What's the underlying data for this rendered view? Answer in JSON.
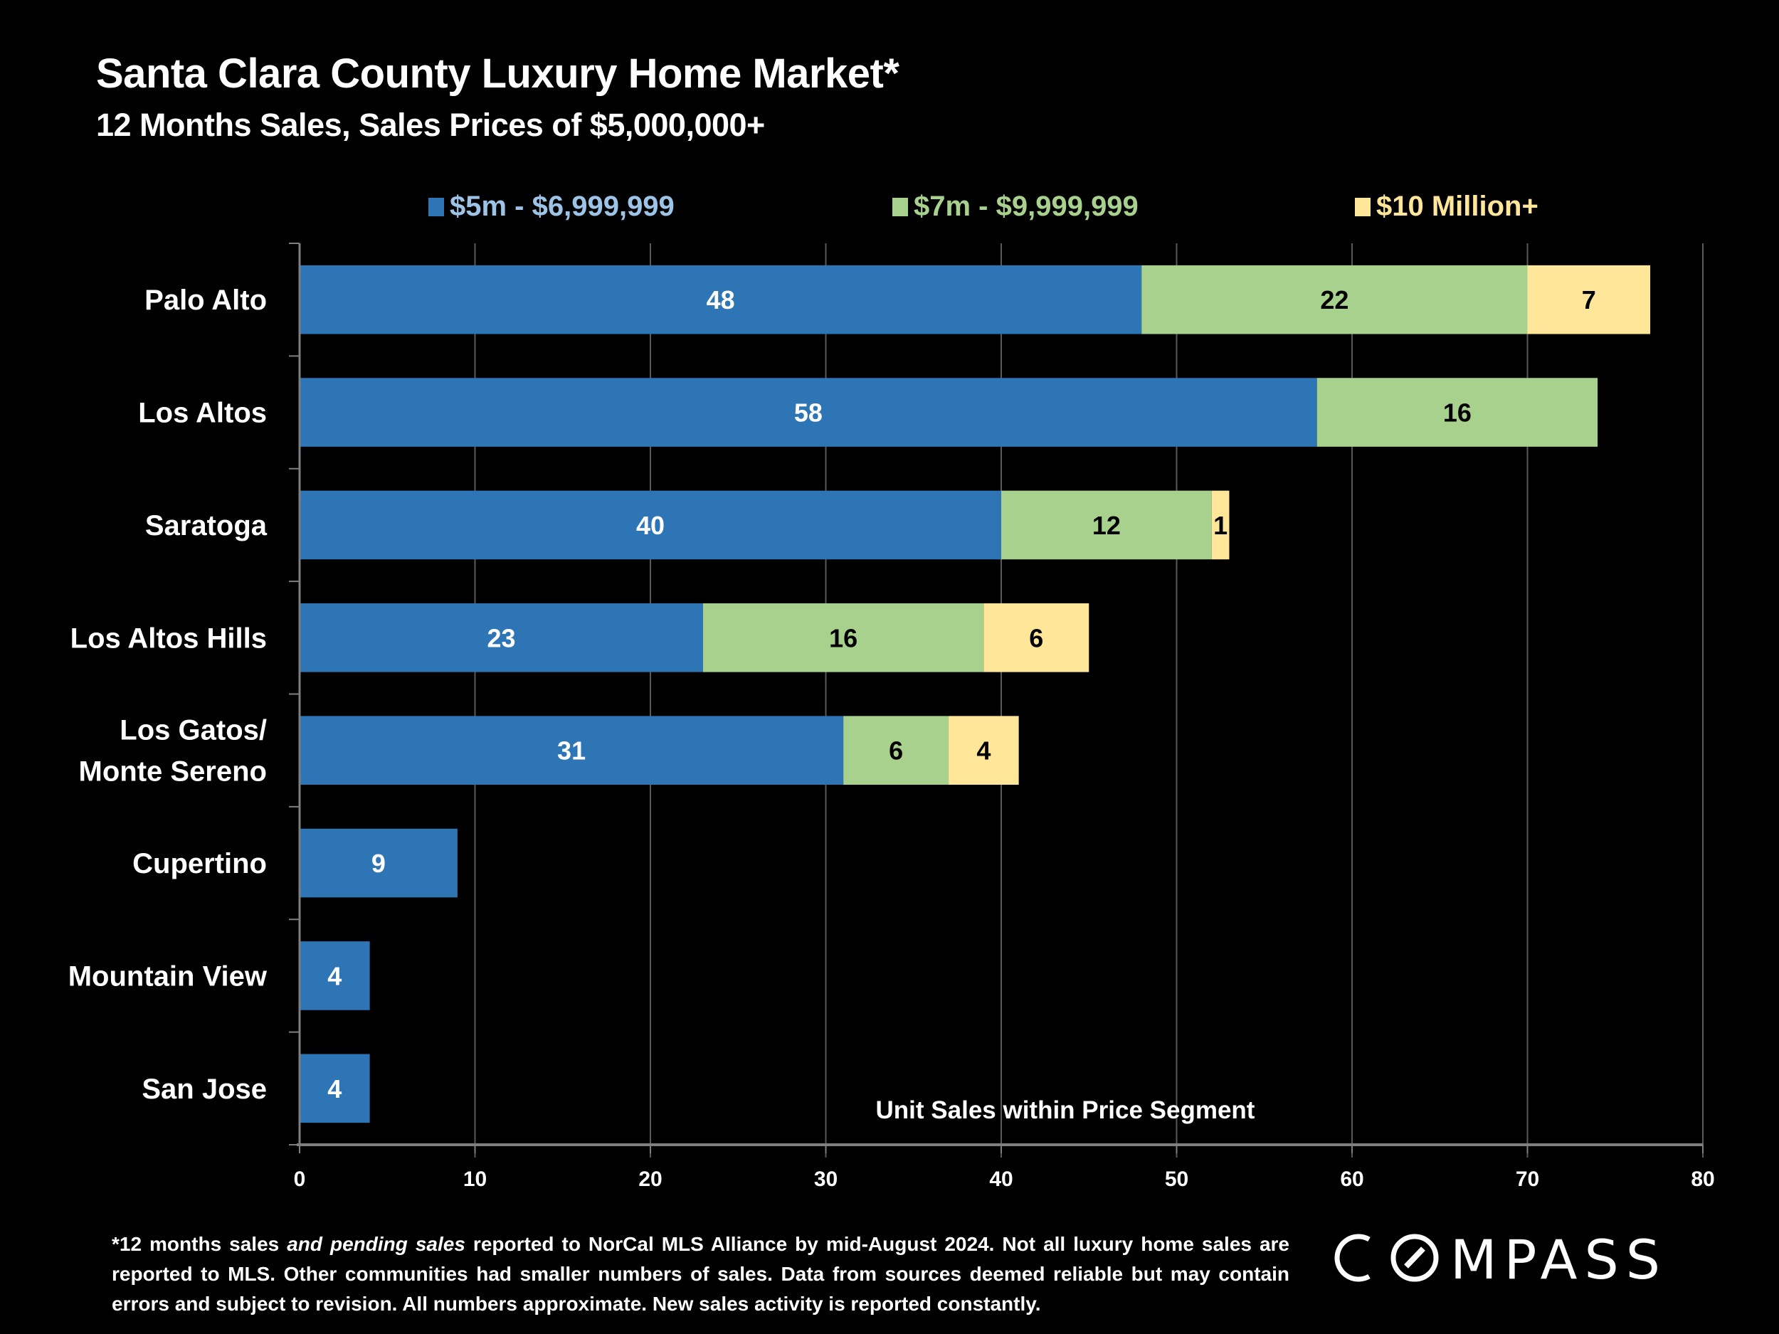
{
  "header": {
    "title": "Santa Clara County Luxury Home Market*",
    "subtitle": "12 Months Sales, Sales Prices of $5,000,000+"
  },
  "legend": [
    {
      "label": "$5m - $6,999,999",
      "color": "#2E75B6",
      "text_color": "#9DC3E6"
    },
    {
      "label": "$7m - $9,999,999",
      "color": "#A9D18E",
      "text_color": "#A9D18E"
    },
    {
      "label": "$10 Million+",
      "color": "#FFE699",
      "text_color": "#FFE699"
    }
  ],
  "chart_data": {
    "type": "bar",
    "orientation": "horizontal",
    "stacked": true,
    "title": "Santa Clara County Luxury Home Market*",
    "subtitle": "12 Months Sales, Sales Prices of $5,000,000+",
    "xlabel": "Unit Sales within Price Segment",
    "ylabel": "",
    "xlim": [
      0,
      80
    ],
    "xticks": [
      0,
      10,
      20,
      30,
      40,
      50,
      60,
      70,
      80
    ],
    "grid": "vertical",
    "legend_position": "top",
    "categories": [
      "Palo Alto",
      "Los Altos",
      "Saratoga",
      "Los Altos Hills",
      "Los Gatos/\nMonte Sereno",
      "Cupertino",
      "Mountain View",
      "San Jose"
    ],
    "series": [
      {
        "name": "$5m - $6,999,999",
        "color": "#2E75B6",
        "label_color": "#FFFFFF",
        "values": [
          48,
          58,
          40,
          23,
          31,
          9,
          4,
          4
        ]
      },
      {
        "name": "$7m - $9,999,999",
        "color": "#A9D18E",
        "label_color": "#000000",
        "values": [
          22,
          16,
          12,
          16,
          6,
          0,
          0,
          0
        ]
      },
      {
        "name": "$10 Million+",
        "color": "#FFE699",
        "label_color": "#000000",
        "values": [
          7,
          0,
          1,
          6,
          4,
          0,
          0,
          0
        ]
      }
    ]
  },
  "footnote": {
    "part1": "*12 months sales ",
    "italic": "and pending sales",
    "part2": " reported to NorCal MLS Alliance by mid-August 2024. Not all luxury home sales are reported to MLS. Other communities had smaller numbers of sales. Data from sources deemed reliable but may contain errors and subject to revision. All numbers approximate. New sales activity is reported constantly."
  },
  "brand": {
    "logo_text": "COMPASS"
  }
}
